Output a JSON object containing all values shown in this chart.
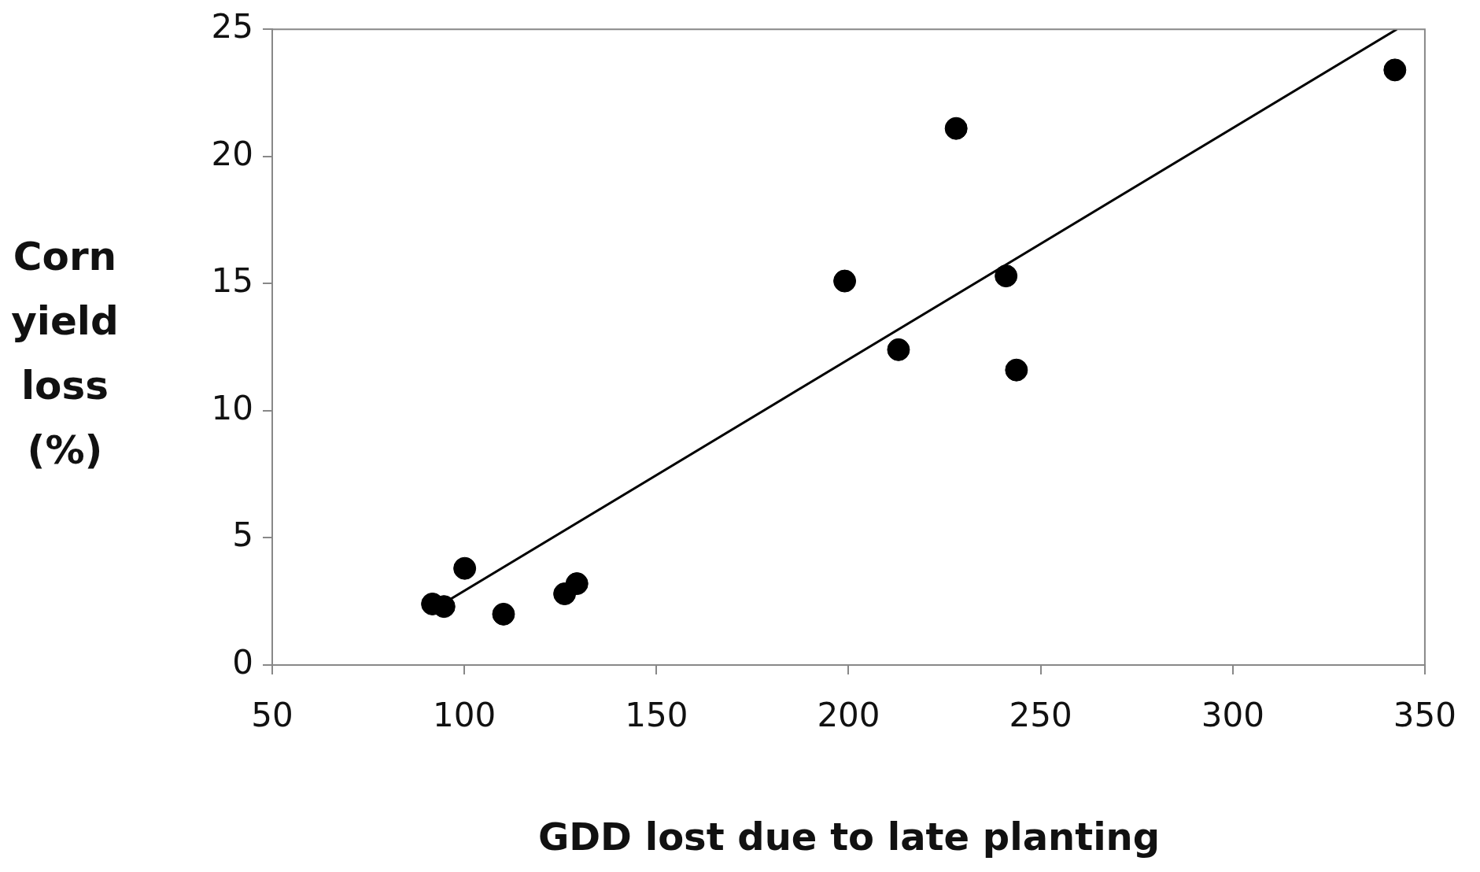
{
  "chart_data": {
    "type": "scatter",
    "xlabel": "GDD lost due to late planting",
    "ylabel": "Corn yield loss (%)",
    "xlim": [
      50,
      350
    ],
    "xticks": [
      50,
      100,
      150,
      200,
      250,
      300,
      350
    ],
    "ylim": [
      0,
      25
    ],
    "yticks": [
      0,
      5,
      10,
      15,
      20,
      25
    ],
    "grid": false,
    "legend": false,
    "marker": "circle",
    "series": [
      {
        "color": "#000000",
        "x": [
          91.7,
          94.7,
          100.1,
          110.2,
          126.1,
          129.3,
          199.0,
          213.0,
          228.0,
          241.0,
          243.7,
          342.2
        ],
        "values": [
          2.4,
          2.3,
          3.8,
          2.0,
          2.8,
          3.2,
          15.1,
          12.4,
          21.1,
          15.3,
          11.6,
          23.4
        ]
      },
      {
        "type": "line",
        "color": "#000000",
        "x": [
          91,
          342.7
        ],
        "values": [
          2.1,
          25
        ],
        "marker": "none",
        "line_style": "solid"
      }
    ]
  }
}
